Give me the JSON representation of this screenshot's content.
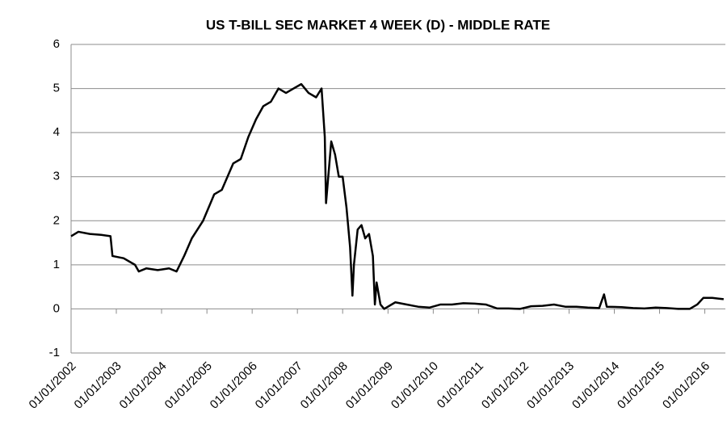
{
  "chart_data": {
    "type": "line",
    "title": "US T-BILL SEC MARKET 4 WEEK (D) - MIDDLE RATE",
    "x": [
      "2002-01-01",
      "2002-03-01",
      "2002-06-01",
      "2002-09-01",
      "2002-11-15",
      "2002-12-01",
      "2003-03-01",
      "2003-06-01",
      "2003-07-01",
      "2003-09-01",
      "2003-12-01",
      "2004-03-01",
      "2004-05-01",
      "2004-07-01",
      "2004-09-01",
      "2004-12-01",
      "2005-03-01",
      "2005-05-01",
      "2005-08-01",
      "2005-10-01",
      "2005-12-01",
      "2006-02-01",
      "2006-04-01",
      "2006-06-01",
      "2006-08-01",
      "2006-10-01",
      "2006-12-01",
      "2007-02-01",
      "2007-04-01",
      "2007-06-01",
      "2007-07-15",
      "2007-08-10",
      "2007-08-20",
      "2007-10-01",
      "2007-11-01",
      "2007-12-01",
      "2008-01-01",
      "2008-02-01",
      "2008-03-01",
      "2008-03-20",
      "2008-04-01",
      "2008-05-01",
      "2008-06-01",
      "2008-07-01",
      "2008-08-01",
      "2008-09-01",
      "2008-09-17",
      "2008-10-01",
      "2008-11-01",
      "2008-12-01",
      "2009-03-01",
      "2009-06-01",
      "2009-09-01",
      "2009-12-01",
      "2010-03-01",
      "2010-06-01",
      "2010-09-01",
      "2010-12-01",
      "2011-03-01",
      "2011-06-01",
      "2011-09-01",
      "2011-12-01",
      "2012-03-01",
      "2012-06-01",
      "2012-09-01",
      "2012-12-01",
      "2013-03-01",
      "2013-06-01",
      "2013-09-01",
      "2013-10-10",
      "2013-11-01",
      "2014-03-01",
      "2014-06-01",
      "2014-09-01",
      "2014-12-01",
      "2015-03-01",
      "2015-06-01",
      "2015-09-01",
      "2015-11-01",
      "2015-12-20",
      "2016-03-01",
      "2016-06-01"
    ],
    "series": [
      {
        "name": "Middle rate",
        "color": "#000000",
        "values": [
          1.65,
          1.75,
          1.7,
          1.68,
          1.65,
          1.2,
          1.15,
          1.0,
          0.85,
          0.92,
          0.88,
          0.92,
          0.85,
          1.2,
          1.6,
          2.0,
          2.6,
          2.7,
          3.3,
          3.4,
          3.9,
          4.3,
          4.6,
          4.7,
          5.0,
          4.9,
          5.0,
          5.1,
          4.9,
          4.8,
          5.0,
          3.9,
          2.4,
          3.8,
          3.5,
          3.0,
          3.0,
          2.3,
          1.4,
          0.3,
          1.0,
          1.8,
          1.9,
          1.6,
          1.7,
          1.2,
          0.1,
          0.6,
          0.1,
          0.0,
          0.15,
          0.1,
          0.05,
          0.03,
          0.1,
          0.1,
          0.13,
          0.12,
          0.1,
          0.01,
          0.01,
          0.0,
          0.06,
          0.07,
          0.1,
          0.05,
          0.05,
          0.03,
          0.02,
          0.33,
          0.05,
          0.04,
          0.02,
          0.01,
          0.03,
          0.02,
          0.0,
          0.0,
          0.1,
          0.25,
          0.25,
          0.22
        ]
      }
    ],
    "xlim": [
      "2002-01-01",
      "2016-06-15"
    ],
    "xticks": [
      {
        "value": "2002-01-01",
        "label": "01/01/2002"
      },
      {
        "value": "2003-01-01",
        "label": "01/01/2003"
      },
      {
        "value": "2004-01-01",
        "label": "01/01/2004"
      },
      {
        "value": "2005-01-01",
        "label": "01/01/2005"
      },
      {
        "value": "2006-01-01",
        "label": "01/01/2006"
      },
      {
        "value": "2007-01-01",
        "label": "01/01/2007"
      },
      {
        "value": "2008-01-01",
        "label": "01/01/2008"
      },
      {
        "value": "2009-01-01",
        "label": "01/01/2009"
      },
      {
        "value": "2010-01-01",
        "label": "01/01/2010"
      },
      {
        "value": "2011-01-01",
        "label": "01/01/2011"
      },
      {
        "value": "2012-01-01",
        "label": "01/01/2012"
      },
      {
        "value": "2013-01-01",
        "label": "01/01/2013"
      },
      {
        "value": "2014-01-01",
        "label": "01/01/2014"
      },
      {
        "value": "2015-01-01",
        "label": "01/01/2015"
      },
      {
        "value": "2016-01-01",
        "label": "01/01/2016"
      }
    ],
    "ylim": [
      -1,
      6
    ],
    "yticks": [
      -1,
      0,
      1,
      2,
      3,
      4,
      5,
      6
    ],
    "grid": true
  }
}
